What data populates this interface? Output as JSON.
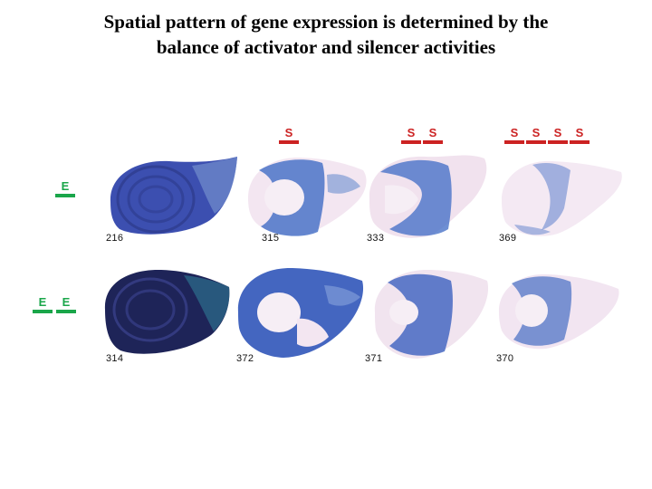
{
  "title": {
    "line1": "Spatial pattern of gene expression is determined by the",
    "line2": "balance of activator and silencer activities"
  },
  "element_labels": {
    "enhancer": "E",
    "silencer": "S"
  },
  "colors": {
    "enhancer": "#1aa64a",
    "silencer": "#cc2222",
    "stain": "#3b5fc4",
    "stain_dark": "#2a2f6e"
  },
  "rows": [
    {
      "enhancers": 1,
      "panels": [
        {
          "id": "216",
          "silencers": 0,
          "staining": "strong"
        },
        {
          "id": "315",
          "silencers": 1,
          "staining": "moderate"
        },
        {
          "id": "333",
          "silencers": 2,
          "staining": "moderate"
        },
        {
          "id": "369",
          "silencers": 4,
          "staining": "weak"
        }
      ]
    },
    {
      "enhancers": 2,
      "panels": [
        {
          "id": "314",
          "silencers": 0,
          "staining": "strongest"
        },
        {
          "id": "372",
          "silencers": 1,
          "staining": "moderate"
        },
        {
          "id": "371",
          "silencers": 2,
          "staining": "moderate"
        },
        {
          "id": "370",
          "silencers": 4,
          "staining": "weak"
        }
      ]
    }
  ]
}
